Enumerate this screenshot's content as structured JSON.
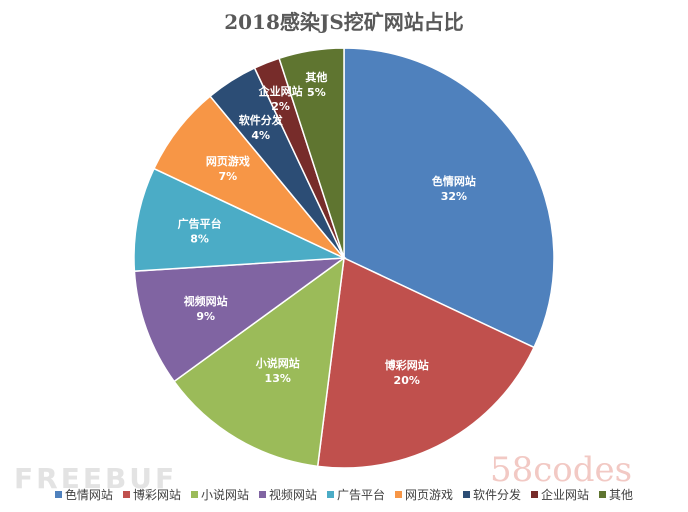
{
  "chart_data": {
    "type": "pie",
    "title": "2018感染JS挖矿网站占比",
    "categories": [
      "色情网站",
      "博彩网站",
      "小说网站",
      "视频网站",
      "广告平台",
      "网页游戏",
      "软件分发",
      "企业网站",
      "其他"
    ],
    "values": [
      32,
      20,
      13,
      9,
      8,
      7,
      4,
      2,
      5
    ],
    "data_labels": [
      "32%",
      "20%",
      "13%",
      "9%",
      "8%",
      "7%",
      "4%",
      "2%",
      "5%"
    ],
    "colors": [
      "#4F81BD",
      "#C0504D",
      "#9BBB59",
      "#8064A2",
      "#4BACC6",
      "#F79646",
      "#2C4D75",
      "#772C2A",
      "#5F7530"
    ],
    "legend": "bottom"
  },
  "watermarks": {
    "left": "FREEBUF",
    "right": "58codes"
  }
}
